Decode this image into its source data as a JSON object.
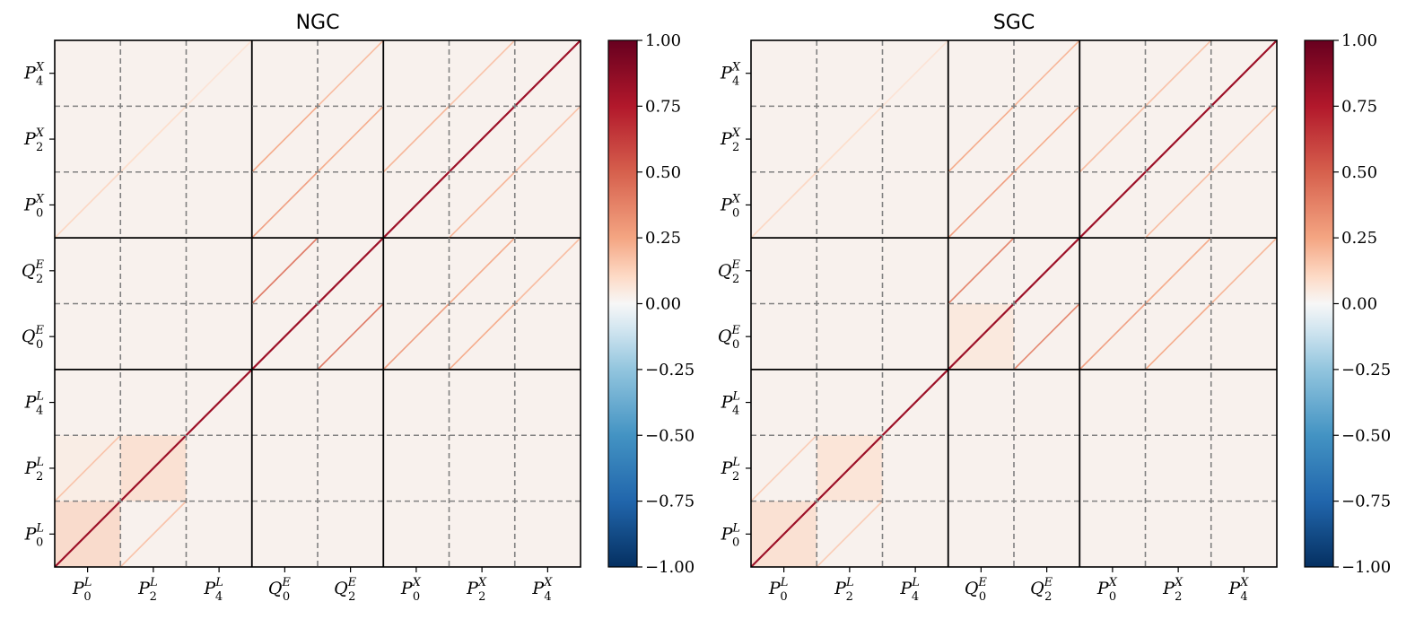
{
  "figure": {
    "colorbar_ticks": [
      "1.00",
      "0.75",
      "0.50",
      "0.25",
      "0.00",
      "−0.25",
      "−0.50",
      "−0.75",
      "−1.00"
    ],
    "colormap": "RdBu_r"
  },
  "chart_data": [
    {
      "type": "heatmap",
      "title": "NGC",
      "xlabel": "",
      "ylabel": "",
      "multipoles": [
        {
          "key": "P0L",
          "base": "P",
          "sub": "0",
          "sup": "L"
        },
        {
          "key": "P2L",
          "base": "P",
          "sub": "2",
          "sup": "L"
        },
        {
          "key": "P4L",
          "base": "P",
          "sub": "4",
          "sup": "L"
        },
        {
          "key": "Q0E",
          "base": "Q",
          "sub": "0",
          "sup": "E"
        },
        {
          "key": "Q2E",
          "base": "Q",
          "sub": "2",
          "sup": "E"
        },
        {
          "key": "P0X",
          "base": "P",
          "sub": "0",
          "sup": "X"
        },
        {
          "key": "P2X",
          "base": "P",
          "sub": "2",
          "sup": "X"
        },
        {
          "key": "P4X",
          "base": "P",
          "sub": "4",
          "sup": "X"
        }
      ],
      "groups": [
        "L",
        "E",
        "X"
      ],
      "value_range": [
        -1.0,
        1.0
      ],
      "colorbar_ticks": [
        1.0,
        0.75,
        0.5,
        0.25,
        0.0,
        -0.25,
        -0.5,
        -0.75,
        -1.0
      ],
      "diagonal_value": 1.0,
      "background_value": 0.02,
      "offdiagonal_stripes": [
        {
          "row": "P2L",
          "col": "P0L",
          "value": 0.18
        },
        {
          "row": "P0L",
          "col": "P2L",
          "value": 0.18
        },
        {
          "row": "Q2E",
          "col": "Q0E",
          "value": 0.45
        },
        {
          "row": "Q0E",
          "col": "Q2E",
          "value": 0.45
        },
        {
          "row": "P0X",
          "col": "Q0E",
          "value": 0.3
        },
        {
          "row": "Q0E",
          "col": "P0X",
          "value": 0.3
        },
        {
          "row": "P2X",
          "col": "Q0E",
          "value": 0.25
        },
        {
          "row": "Q0E",
          "col": "P2X",
          "value": 0.25
        },
        {
          "row": "P2X",
          "col": "Q2E",
          "value": 0.25
        },
        {
          "row": "Q2E",
          "col": "P2X",
          "value": 0.25
        },
        {
          "row": "P4X",
          "col": "Q2E",
          "value": 0.2
        },
        {
          "row": "Q2E",
          "col": "P4X",
          "value": 0.2
        },
        {
          "row": "P2X",
          "col": "P0X",
          "value": 0.22
        },
        {
          "row": "P0X",
          "col": "P2X",
          "value": 0.22
        },
        {
          "row": "P4X",
          "col": "P2X",
          "value": 0.18
        },
        {
          "row": "P2X",
          "col": "P4X",
          "value": 0.18
        },
        {
          "row": "P0X",
          "col": "P0L",
          "value": 0.12
        },
        {
          "row": "P2X",
          "col": "P2L",
          "value": 0.1
        },
        {
          "row": "P4X",
          "col": "P4L",
          "value": 0.08
        }
      ],
      "block_offsets": [
        {
          "row": "P0L",
          "col": "P0L",
          "value": 0.15
        },
        {
          "row": "P2L",
          "col": "P2L",
          "value": 0.12
        },
        {
          "row": "P2L",
          "col": "P0L",
          "value": 0.05
        }
      ]
    },
    {
      "type": "heatmap",
      "title": "SGC",
      "xlabel": "",
      "ylabel": "",
      "multipoles": [
        {
          "key": "P0L",
          "base": "P",
          "sub": "0",
          "sup": "L"
        },
        {
          "key": "P2L",
          "base": "P",
          "sub": "2",
          "sup": "L"
        },
        {
          "key": "P4L",
          "base": "P",
          "sub": "4",
          "sup": "L"
        },
        {
          "key": "Q0E",
          "base": "Q",
          "sub": "0",
          "sup": "E"
        },
        {
          "key": "Q2E",
          "base": "Q",
          "sub": "2",
          "sup": "E"
        },
        {
          "key": "P0X",
          "base": "P",
          "sub": "0",
          "sup": "X"
        },
        {
          "key": "P2X",
          "base": "P",
          "sub": "2",
          "sup": "X"
        },
        {
          "key": "P4X",
          "base": "P",
          "sub": "4",
          "sup": "X"
        }
      ],
      "groups": [
        "L",
        "E",
        "X"
      ],
      "value_range": [
        -1.0,
        1.0
      ],
      "colorbar_ticks": [
        1.0,
        0.75,
        0.5,
        0.25,
        0.0,
        -0.25,
        -0.5,
        -0.75,
        -1.0
      ],
      "diagonal_value": 1.0,
      "background_value": 0.02,
      "offdiagonal_stripes": [
        {
          "row": "P2L",
          "col": "P0L",
          "value": 0.15
        },
        {
          "row": "P0L",
          "col": "P2L",
          "value": 0.15
        },
        {
          "row": "Q2E",
          "col": "Q0E",
          "value": 0.4
        },
        {
          "row": "Q0E",
          "col": "Q2E",
          "value": 0.4
        },
        {
          "row": "P0X",
          "col": "Q0E",
          "value": 0.3
        },
        {
          "row": "Q0E",
          "col": "P0X",
          "value": 0.3
        },
        {
          "row": "P2X",
          "col": "Q0E",
          "value": 0.25
        },
        {
          "row": "Q0E",
          "col": "P2X",
          "value": 0.25
        },
        {
          "row": "P2X",
          "col": "Q2E",
          "value": 0.25
        },
        {
          "row": "Q2E",
          "col": "P2X",
          "value": 0.25
        },
        {
          "row": "P4X",
          "col": "Q2E",
          "value": 0.22
        },
        {
          "row": "Q2E",
          "col": "P4X",
          "value": 0.22
        },
        {
          "row": "P2X",
          "col": "P0X",
          "value": 0.2
        },
        {
          "row": "P0X",
          "col": "P2X",
          "value": 0.2
        },
        {
          "row": "P4X",
          "col": "P2X",
          "value": 0.18
        },
        {
          "row": "P2X",
          "col": "P4X",
          "value": 0.18
        },
        {
          "row": "P0X",
          "col": "P0L",
          "value": 0.12
        },
        {
          "row": "P2X",
          "col": "P2L",
          "value": 0.1
        },
        {
          "row": "P4X",
          "col": "P4L",
          "value": 0.08
        }
      ],
      "block_offsets": [
        {
          "row": "P0L",
          "col": "P0L",
          "value": 0.12
        },
        {
          "row": "P2L",
          "col": "P2L",
          "value": 0.1
        },
        {
          "row": "Q0E",
          "col": "Q0E",
          "value": 0.08
        }
      ]
    }
  ]
}
